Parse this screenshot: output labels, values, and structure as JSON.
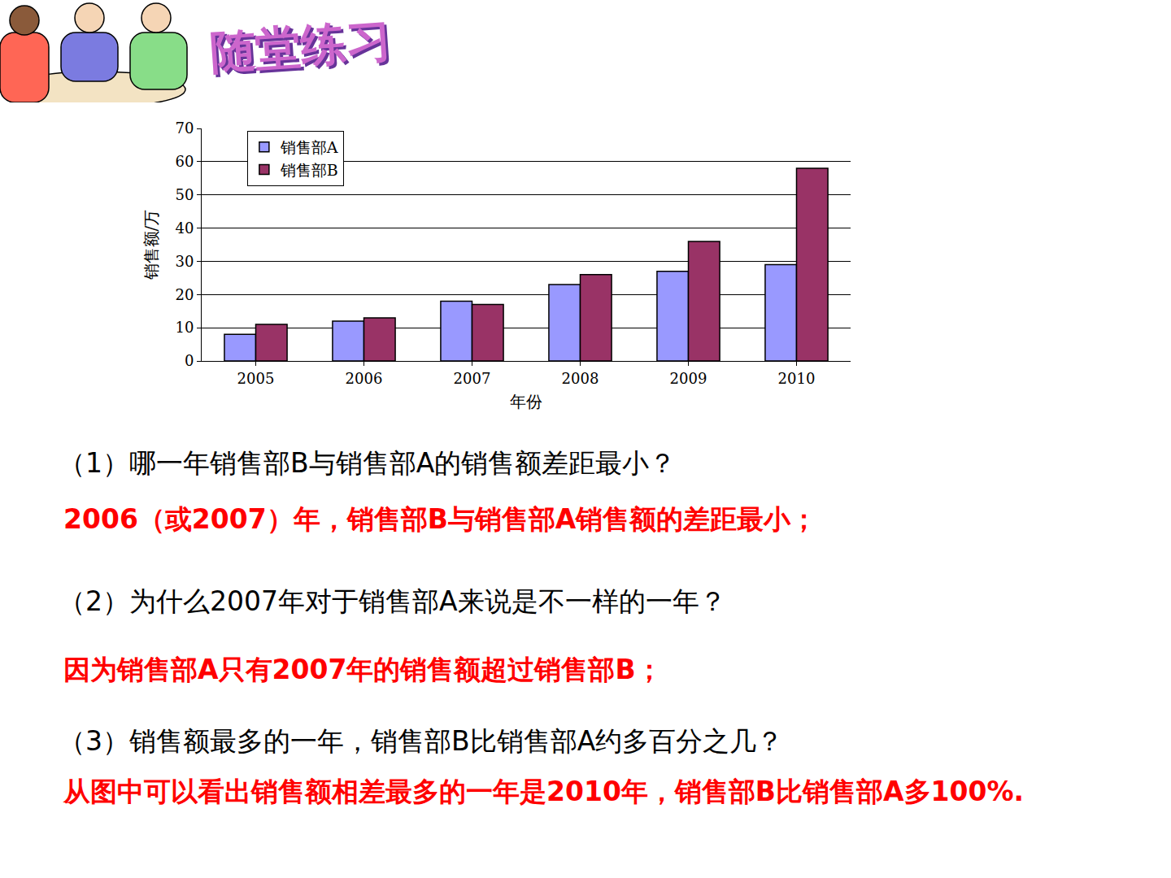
{
  "header": {
    "title": "随堂练习"
  },
  "chart_data": {
    "type": "bar",
    "categories": [
      "2005",
      "2006",
      "2007",
      "2008",
      "2009",
      "2010"
    ],
    "series": [
      {
        "name": "销售部A",
        "color": "#9999ff",
        "values": [
          8,
          12,
          18,
          23,
          27,
          29
        ]
      },
      {
        "name": "销售部B",
        "color": "#993366",
        "values": [
          11,
          13,
          17,
          26,
          36,
          58
        ]
      }
    ],
    "x_label": "年份",
    "y_label": "销售额/万",
    "ylim": [
      0,
      70
    ],
    "yticks": [
      0,
      10,
      20,
      30,
      40,
      50,
      60,
      70
    ],
    "grid": true,
    "legend": "top-left"
  },
  "questions": [
    {
      "question": "（1）哪一年销售部B与销售部A的销售额差距最小？",
      "answer": "2006（或2007）年，销售部B与销售部A销售额的差距最小；"
    },
    {
      "question": "（2）为什么2007年对于销售部A来说是不一样的一年？",
      "answer": "因为销售部A只有2007年的销售额超过销售部B；"
    },
    {
      "question": "（3）销售额最多的一年，销售部B比销售部A约多百分之几？",
      "answer": "从图中可以看出销售额相差最多的一年是2010年，销售部B比销售部A多100%."
    }
  ]
}
